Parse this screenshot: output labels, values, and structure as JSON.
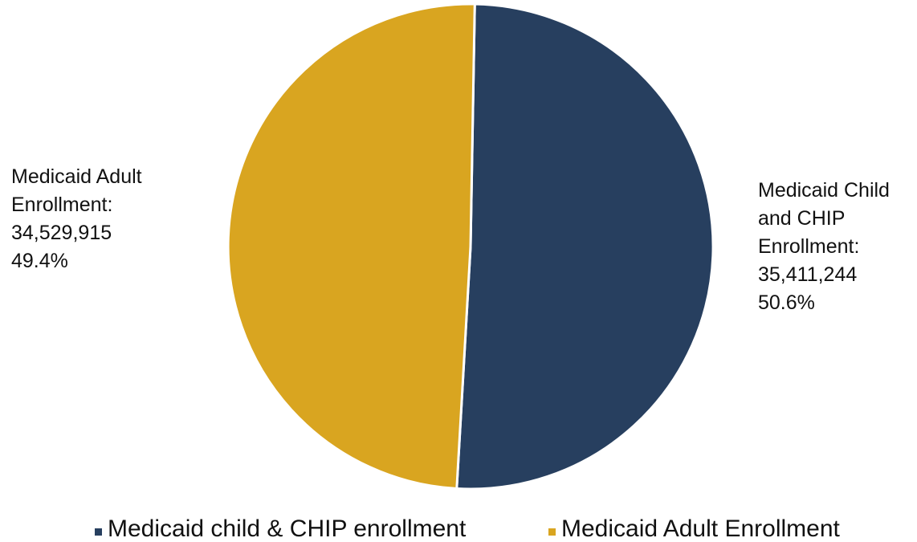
{
  "chart_data": {
    "type": "pie",
    "title": "",
    "start_angle_deg": 1,
    "direction": "clockwise",
    "slices": [
      {
        "name": "Medicaid child & CHIP enrollment",
        "value": 35411244,
        "percent": 50.6,
        "color": "#273f5f",
        "label_lines": [
          "Medicaid Child",
          "and CHIP",
          "Enrollment:",
          "35,411,244",
          "50.6%"
        ]
      },
      {
        "name": "Medicaid Adult Enrollment",
        "value": 34529915,
        "percent": 49.4,
        "color": "#d9a520",
        "label_lines": [
          "Medicaid Adult",
          "Enrollment:",
          "34,529,915",
          "49.4%"
        ]
      }
    ],
    "legend": {
      "placement": "bottom",
      "entries": [
        "Medicaid child & CHIP enrollment",
        "Medicaid Adult Enrollment"
      ]
    },
    "slice_border_color": "#ffffff"
  }
}
